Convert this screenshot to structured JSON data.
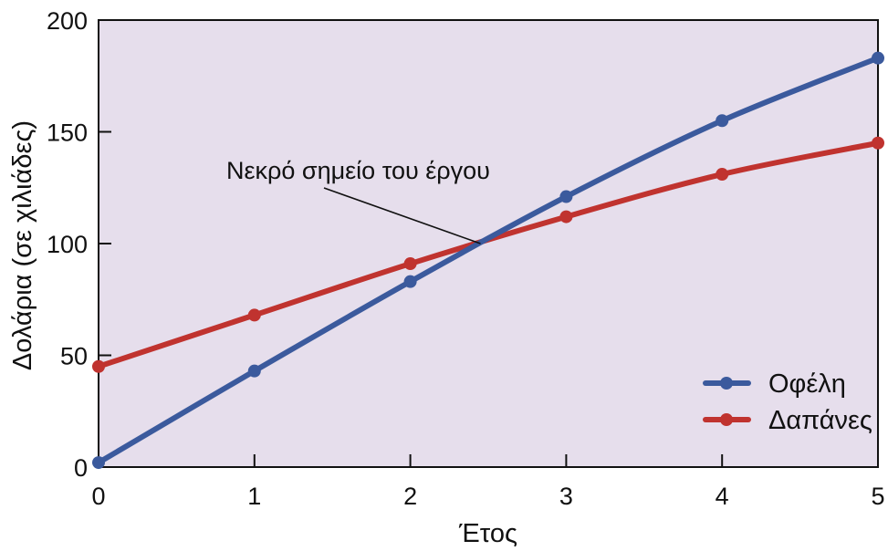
{
  "chart_data": {
    "type": "line",
    "title": "",
    "xlabel": "Έτος",
    "ylabel": "Δολάρια (σε χιλιάδες)",
    "x": [
      0,
      1,
      2,
      3,
      4,
      5
    ],
    "xlim": [
      0,
      5
    ],
    "ylim": [
      0,
      200
    ],
    "xticks": [
      "0",
      "1",
      "2",
      "3",
      "4",
      "5"
    ],
    "yticks": [
      "0",
      "50",
      "100",
      "150",
      "200"
    ],
    "series": [
      {
        "name": "Οφέλη",
        "color": "#3b5a9d",
        "values": [
          2,
          43,
          83,
          121,
          155,
          183
        ]
      },
      {
        "name": "Δαπάνες",
        "color": "#c0332f",
        "values": [
          45,
          68,
          91,
          112,
          131,
          145
        ]
      }
    ],
    "annotation": {
      "text": "Νεκρό σημείο του έργου",
      "x": 2.45,
      "y": 100
    },
    "legend_position": "bottom-right",
    "plot_background": "#e6deec",
    "grid": false
  }
}
